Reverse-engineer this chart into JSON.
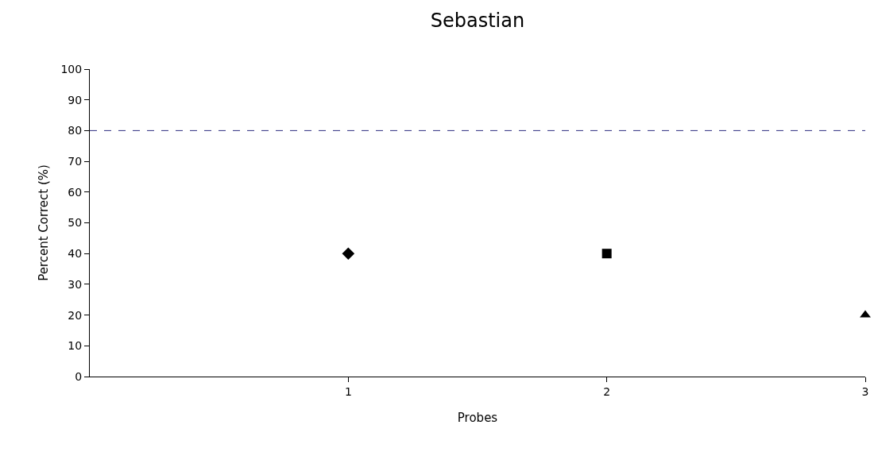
{
  "chart_data": {
    "type": "scatter",
    "title": "Sebastian",
    "xlabel": "Probes",
    "ylabel": "Percent Correct (%)",
    "series": [
      {
        "x": [
          1
        ],
        "values": [
          40
        ],
        "color": "#000000",
        "marker": "diamond"
      },
      {
        "x": [
          2
        ],
        "values": [
          40
        ],
        "color": "#000000",
        "marker": "square"
      },
      {
        "x": [
          3
        ],
        "values": [
          20
        ],
        "color": "#000000",
        "marker": "triangle"
      }
    ],
    "xlim": [
      0,
      3
    ],
    "xticks": [
      1,
      2,
      3
    ],
    "ylim": [
      0,
      100
    ],
    "yticks": [
      0,
      10,
      20,
      30,
      40,
      50,
      60,
      70,
      80,
      90,
      100
    ],
    "ref_lines": [
      {
        "axis": "y",
        "value": 80,
        "color": "#2e2e80",
        "line_style": "dashed"
      }
    ],
    "grid": false
  }
}
